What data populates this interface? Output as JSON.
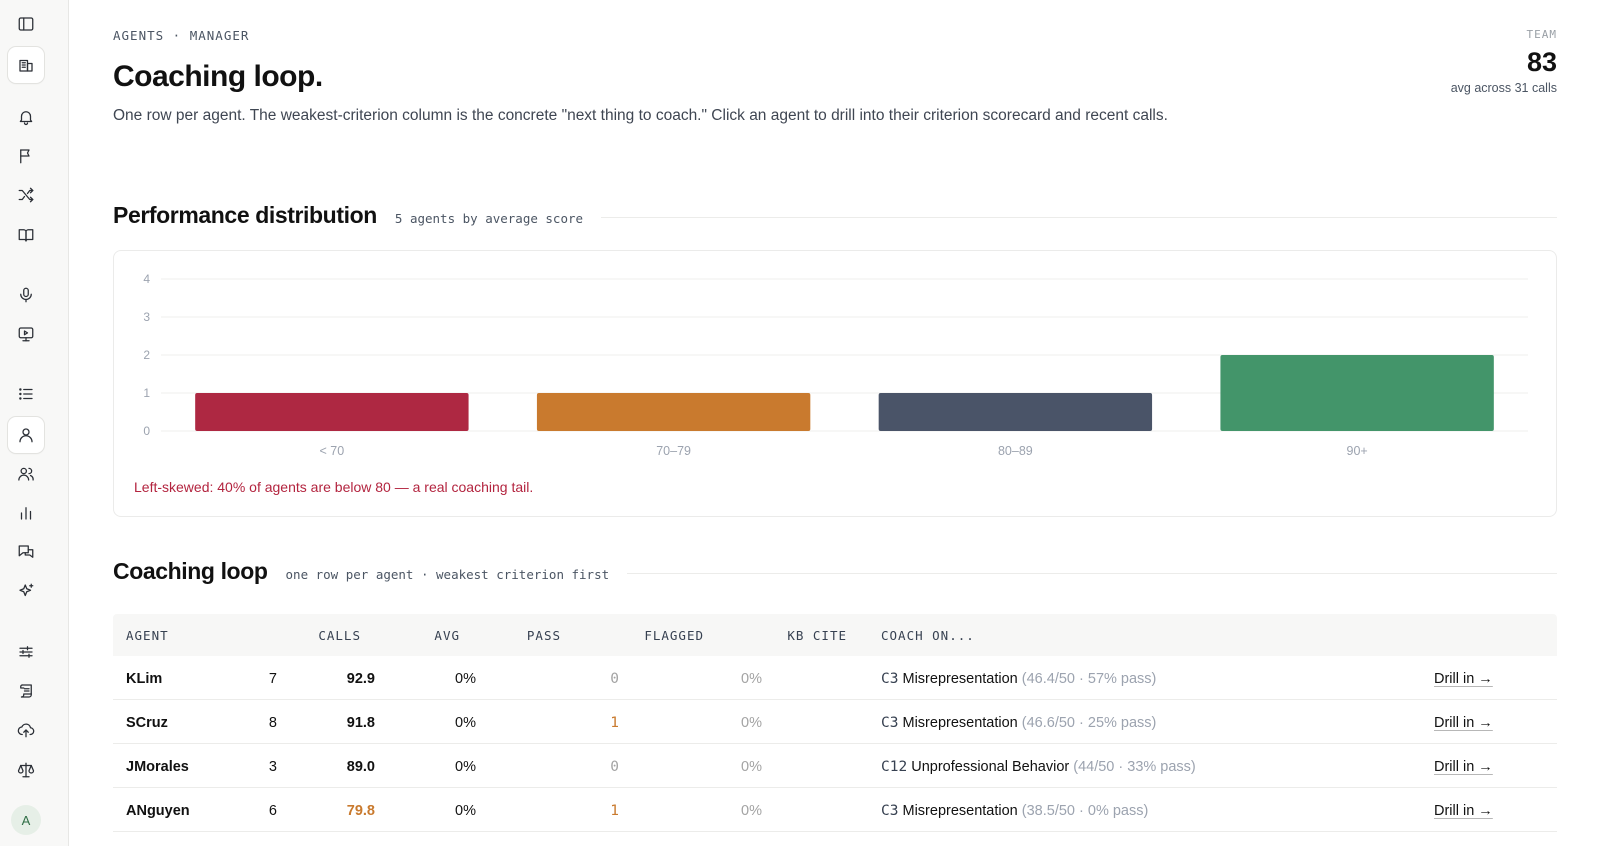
{
  "sidebar": {
    "items": [
      {
        "icon": "sidebar-toggle-icon"
      },
      {
        "icon": "building-icon",
        "active": true
      },
      {
        "icon": "bell-icon"
      },
      {
        "icon": "flag-icon"
      },
      {
        "icon": "shuffle-icon"
      },
      {
        "icon": "book-icon"
      },
      {
        "icon": "microphone-icon"
      },
      {
        "icon": "monitor-play-icon"
      },
      {
        "icon": "list-icon"
      },
      {
        "icon": "user-icon",
        "active": true
      },
      {
        "icon": "users-icon"
      },
      {
        "icon": "bar-chart-icon"
      },
      {
        "icon": "messages-icon"
      },
      {
        "icon": "sparkles-icon"
      },
      {
        "icon": "sliders-icon"
      },
      {
        "icon": "scroll-icon"
      },
      {
        "icon": "cloud-upload-icon"
      },
      {
        "icon": "scale-icon"
      }
    ],
    "avatar": "A"
  },
  "header": {
    "eyebrow": "AGENTS · MANAGER",
    "title": "Coaching loop.",
    "subtitle": "One row per agent. The weakest-criterion column is the concrete \"next thing to coach.\" Click an agent to drill into their criterion scorecard and recent calls."
  },
  "team": {
    "label": "TEAM",
    "value": "83",
    "sub": "avg across 31 calls"
  },
  "distribution": {
    "title": "Performance distribution",
    "note": "5 agents by average score",
    "annotation": "Left-skewed: 40% of agents are below 80 — a real coaching tail."
  },
  "chart_data": {
    "type": "bar",
    "categories": [
      "< 70",
      "70–79",
      "80–89",
      "90+"
    ],
    "values": [
      1,
      1,
      1,
      2
    ],
    "colors": [
      "#ae2842",
      "#c97a2e",
      "#4a5468",
      "#43956a"
    ],
    "yticks": [
      "0",
      "1",
      "2",
      "3",
      "4"
    ],
    "ylim": [
      0,
      4
    ],
    "grid": true
  },
  "coaching": {
    "title": "Coaching loop",
    "note": "one row per agent · weakest criterion first",
    "columns": {
      "agent": "AGENT",
      "calls": "CALLS",
      "avg": "AVG",
      "pass": "PASS",
      "flagged": "FLAGGED",
      "kb": "KB CITE",
      "coach": "COACH ON..."
    },
    "rows": [
      {
        "agent": "KLim",
        "calls": "7",
        "avg": "92.9",
        "avg_color": "#111111",
        "pass": "0%",
        "flagged": "0",
        "flagged_color": "#a3a3a3",
        "kb": "0%",
        "code": "C3",
        "criterion": "Misrepresentation",
        "meta": "(46.4/50 · 57% pass)",
        "drill": "Drill in →"
      },
      {
        "agent": "SCruz",
        "calls": "8",
        "avg": "91.8",
        "avg_color": "#111111",
        "pass": "0%",
        "flagged": "1",
        "flagged_color": "#c97a2e",
        "kb": "0%",
        "code": "C3",
        "criterion": "Misrepresentation",
        "meta": "(46.6/50 · 25% pass)",
        "drill": "Drill in →"
      },
      {
        "agent": "JMorales",
        "calls": "3",
        "avg": "89.0",
        "avg_color": "#111111",
        "pass": "0%",
        "flagged": "0",
        "flagged_color": "#a3a3a3",
        "kb": "0%",
        "code": "C12",
        "criterion": "Unprofessional Behavior",
        "meta": "(44/50 · 33% pass)",
        "drill": "Drill in →"
      },
      {
        "agent": "ANguyen",
        "calls": "6",
        "avg": "79.8",
        "avg_color": "#c97a2e",
        "pass": "0%",
        "flagged": "1",
        "flagged_color": "#c97a2e",
        "kb": "0%",
        "code": "C3",
        "criterion": "Misrepresentation",
        "meta": "(38.5/50 · 0% pass)",
        "drill": "Drill in →"
      }
    ]
  }
}
